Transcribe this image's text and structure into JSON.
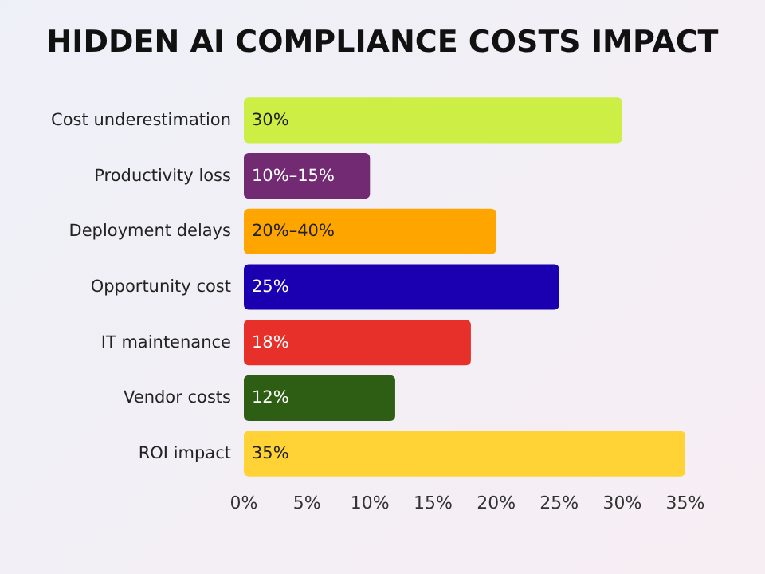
{
  "chart_data": {
    "type": "bar",
    "title": "HIDDEN AI COMPLIANCE COSTS IMPACT",
    "orientation": "horizontal",
    "categories": [
      "Cost underestimation",
      "Productivity loss",
      "Deployment delays",
      "Opportunity cost",
      "IT maintenance",
      "Vendor costs",
      "ROI impact"
    ],
    "values": [
      30,
      10,
      20,
      25,
      18,
      12,
      35
    ],
    "colors": [
      "#cdee44",
      "#722a73",
      "#ffa500",
      "#1a00b0",
      "#e8302a",
      "#2e5e14",
      "#ffd335"
    ],
    "value_labels": [
      "30%",
      "10%–15%",
      "20%–40%",
      "25%",
      "18%",
      "12%",
      "35%"
    ],
    "xlim": [
      0,
      35
    ],
    "xticks": [
      {
        "value": 0,
        "label": "0%"
      },
      {
        "value": 5,
        "label": "5%"
      },
      {
        "value": 10,
        "label": "10%"
      },
      {
        "value": 15,
        "label": "15%"
      },
      {
        "value": 20,
        "label": "20%"
      },
      {
        "value": 25,
        "label": "25%"
      },
      {
        "value": 30,
        "label": "30%"
      },
      {
        "value": 35,
        "label": "35%"
      }
    ],
    "grid": false
  }
}
